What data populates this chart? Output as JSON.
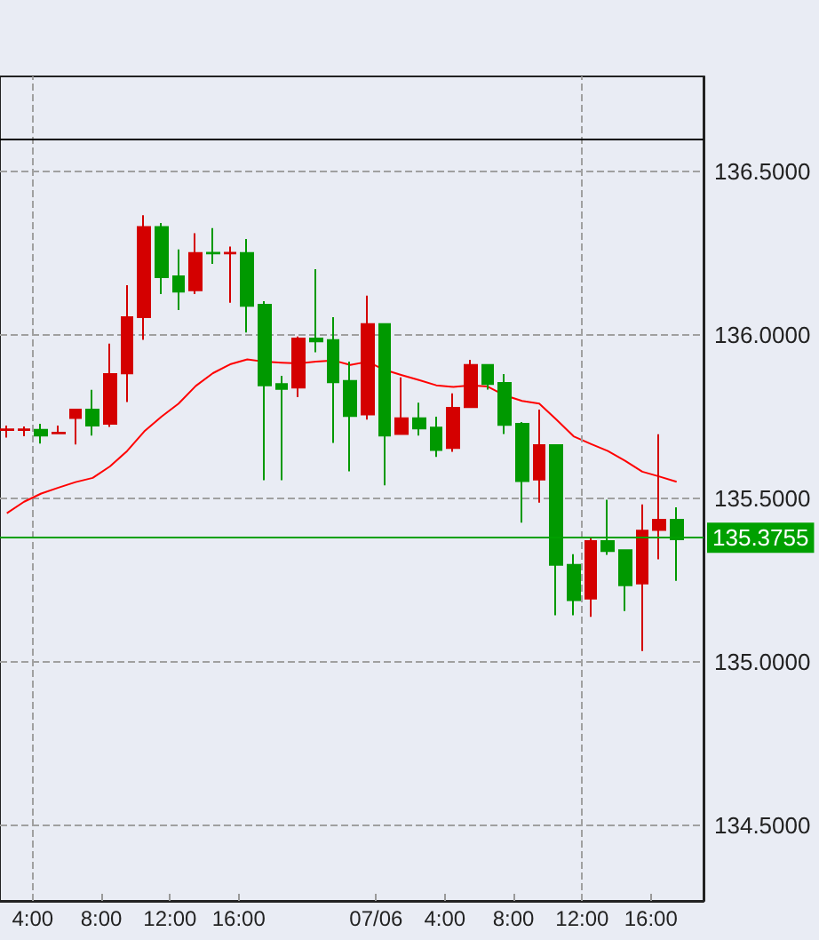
{
  "chart_data": {
    "type": "candlestick",
    "xlim": [
      "--07-05T02:06",
      "--07-06T19:04"
    ],
    "xticks": [
      {
        "value": "--07-05T04:00",
        "label": "4:00"
      },
      {
        "value": "--07-05T08:00",
        "label": "8:00"
      },
      {
        "value": "--07-05T12:00",
        "label": "12:00"
      },
      {
        "value": "--07-05T16:00",
        "label": "16:00"
      },
      {
        "value": "--07-06T00:00",
        "label": "07/06"
      },
      {
        "value": "--07-06T04:00",
        "label": "4:00"
      },
      {
        "value": "--07-06T08:00",
        "label": "8:00"
      },
      {
        "value": "--07-06T12:00",
        "label": "12:00"
      },
      {
        "value": "--07-06T16:00",
        "label": "16:00"
      }
    ],
    "ylim": [
      134.27,
      136.79
    ],
    "yticks": [
      {
        "value": 134.5,
        "label": "134.5000"
      },
      {
        "value": 135,
        "label": "135.0000"
      },
      {
        "value": 135.5,
        "label": "135.5000"
      },
      {
        "value": 136,
        "label": "136.0000"
      },
      {
        "value": 136.5,
        "label": "136.5000"
      }
    ],
    "grid": "y",
    "ref_lines": [
      {
        "axis": "x",
        "value": "--07-05T04:00",
        "color": "#a0a0a0",
        "line_style": "dashed"
      },
      {
        "axis": "x",
        "value": "--07-06T12:00",
        "color": "#a0a0a0",
        "line_style": "dashed"
      },
      {
        "axis": "y",
        "value": 136.6,
        "color": "#000000",
        "line_style": "solid"
      },
      {
        "axis": "y",
        "value": 135.3755,
        "label": "135.3755",
        "color": "#00a000",
        "line_style": "solid"
      }
    ],
    "series": [
      {
        "x": [
          "--07-05T02:30",
          "--07-05T03:30",
          "--07-05T04:30",
          "--07-05T05:30",
          "--07-05T06:30",
          "--07-05T07:30",
          "--07-05T08:30",
          "--07-05T09:30",
          "--07-05T10:30",
          "--07-05T11:30",
          "--07-05T12:30",
          "--07-05T13:30",
          "--07-05T14:30",
          "--07-05T15:30",
          "--07-05T16:30",
          "--07-05T17:30",
          "--07-05T18:30",
          "--07-05T19:30",
          "--07-05T20:30",
          "--07-05T21:30",
          "--07-05T22:30",
          "--07-05T23:30",
          "--07-06T00:30",
          "--07-06T01:30",
          "--07-06T02:30",
          "--07-06T03:30",
          "--07-06T04:30",
          "--07-06T05:30",
          "--07-06T06:30",
          "--07-06T07:30",
          "--07-06T08:30",
          "--07-06T09:30",
          "--07-06T10:30",
          "--07-06T11:30",
          "--07-06T12:30",
          "--07-06T13:30",
          "--07-06T14:30",
          "--07-06T15:30",
          "--07-06T16:30",
          "--07-06T17:30"
        ],
        "ohlc": [
          [
            135.709,
            135.723,
            135.686,
            135.711
          ],
          [
            135.709,
            135.72,
            135.69,
            135.711
          ],
          [
            135.71,
            135.728,
            135.668,
            135.692
          ],
          [
            135.699,
            135.723,
            135.698,
            135.701
          ],
          [
            135.746,
            135.772,
            135.665,
            135.772
          ],
          [
            135.772,
            135.832,
            135.692,
            135.723
          ],
          [
            135.728,
            135.973,
            135.719,
            135.88
          ],
          [
            135.882,
            136.152,
            135.795,
            136.054
          ],
          [
            136.054,
            136.366,
            135.985,
            136.33
          ],
          [
            136.33,
            136.342,
            136.125,
            136.176
          ],
          [
            136.179,
            136.261,
            136.076,
            136.132
          ],
          [
            136.136,
            136.311,
            136.125,
            136.25
          ],
          [
            136.251,
            136.326,
            136.217,
            136.249
          ],
          [
            136.249,
            136.27,
            136.098,
            136.251
          ],
          [
            136.25,
            136.293,
            136.007,
            136.089
          ],
          [
            136.092,
            136.103,
            135.556,
            135.846
          ],
          [
            135.85,
            135.875,
            135.556,
            135.835
          ],
          [
            135.839,
            135.995,
            135.81,
            135.989
          ],
          [
            135.989,
            136.201,
            135.947,
            135.98
          ],
          [
            135.984,
            136.054,
            135.67,
            135.855
          ],
          [
            135.859,
            135.918,
            135.583,
            135.752
          ],
          [
            135.757,
            136.12,
            135.741,
            136.033
          ],
          [
            136.033,
            136.033,
            135.54,
            135.692
          ],
          [
            135.697,
            135.87,
            135.697,
            135.745
          ],
          [
            135.745,
            135.793,
            135.692,
            135.714
          ],
          [
            135.717,
            135.75,
            135.627,
            135.648
          ],
          [
            135.654,
            135.821,
            135.643,
            135.777
          ],
          [
            135.779,
            135.924,
            135.777,
            135.908
          ],
          [
            135.908,
            135.908,
            135.833,
            135.85
          ],
          [
            135.853,
            135.88,
            135.697,
            135.725
          ],
          [
            135.728,
            135.734,
            135.426,
            135.553
          ],
          [
            135.558,
            135.772,
            135.487,
            135.663
          ],
          [
            135.663,
            135.663,
            135.143,
            135.297
          ],
          [
            135.297,
            135.33,
            135.143,
            135.189
          ],
          [
            135.194,
            135.379,
            135.138,
            135.37
          ],
          [
            135.37,
            135.496,
            135.328,
            135.339
          ],
          [
            135.342,
            135.342,
            135.156,
            135.235
          ],
          [
            135.24,
            135.482,
            135.034,
            135.402
          ],
          [
            135.404,
            135.696,
            135.314,
            135.435
          ],
          [
            135.435,
            135.473,
            135.248,
            135.3755
          ]
        ],
        "colors": [
          "#d40000",
          "#d40000",
          "#009900",
          "#d40000",
          "#d40000",
          "#009900",
          "#d40000",
          "#d40000",
          "#d40000",
          "#009900",
          "#009900",
          "#d40000",
          "#009900",
          "#d40000",
          "#009900",
          "#009900",
          "#009900",
          "#d40000",
          "#009900",
          "#009900",
          "#009900",
          "#d40000",
          "#009900",
          "#d40000",
          "#009900",
          "#009900",
          "#d40000",
          "#d40000",
          "#009900",
          "#009900",
          "#009900",
          "#d40000",
          "#009900",
          "#009900",
          "#d40000",
          "#009900",
          "#009900",
          "#d40000",
          "#d40000",
          "#009900"
        ]
      },
      {
        "type": "line",
        "color": "#ff0000",
        "marker": "none",
        "x": [
          "--07-05T02:30",
          "--07-05T03:30",
          "--07-05T04:30",
          "--07-05T05:30",
          "--07-05T06:30",
          "--07-05T07:30",
          "--07-05T08:30",
          "--07-05T09:30",
          "--07-05T10:30",
          "--07-05T11:30",
          "--07-05T12:30",
          "--07-05T13:30",
          "--07-05T14:30",
          "--07-05T15:30",
          "--07-05T16:30",
          "--07-05T17:30",
          "--07-05T18:30",
          "--07-05T19:30",
          "--07-05T20:30",
          "--07-05T21:30",
          "--07-05T22:30",
          "--07-05T23:30",
          "--07-06T00:30",
          "--07-06T01:30",
          "--07-06T02:30",
          "--07-06T03:30",
          "--07-06T04:30",
          "--07-06T05:30",
          "--07-06T06:30",
          "--07-06T07:30",
          "--07-06T08:30",
          "--07-06T09:30",
          "--07-06T10:30",
          "--07-06T11:30",
          "--07-06T12:30",
          "--07-06T13:30",
          "--07-06T14:30",
          "--07-06T15:30",
          "--07-06T16:30",
          "--07-06T17:30"
        ],
        "values": [
          135.455,
          135.49,
          135.515,
          135.533,
          135.55,
          135.563,
          135.598,
          135.645,
          135.705,
          135.75,
          135.79,
          135.844,
          135.883,
          135.91,
          135.925,
          135.918,
          135.915,
          135.913,
          135.918,
          135.922,
          135.908,
          135.918,
          135.893,
          135.877,
          135.862,
          135.846,
          135.841,
          135.846,
          135.842,
          135.815,
          135.798,
          135.79,
          135.741,
          135.69,
          135.667,
          135.645,
          135.615,
          135.582,
          135.567,
          135.551
        ]
      }
    ]
  }
}
